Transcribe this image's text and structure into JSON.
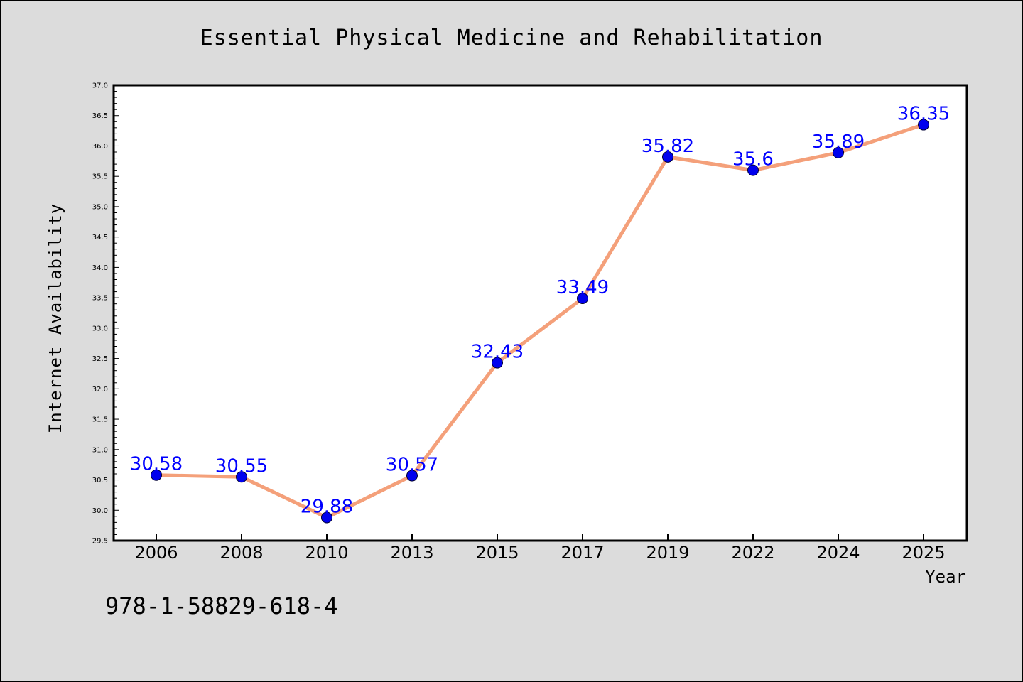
{
  "chart_data": {
    "type": "line",
    "title": "Essential Physical Medicine and Rehabilitation",
    "xlabel": "Year",
    "ylabel": "Internet Availability",
    "categories": [
      "2006",
      "2008",
      "2010",
      "2013",
      "2015",
      "2017",
      "2019",
      "2022",
      "2024",
      "2025"
    ],
    "series": [
      {
        "values": [
          30.58,
          30.55,
          29.88,
          30.57,
          32.43,
          33.49,
          35.82,
          35.6,
          35.89,
          36.35
        ]
      }
    ],
    "data_labels": [
      "30.58",
      "30.55",
      "29.88",
      "30.57",
      "32.43",
      "33.49",
      "35.82",
      "35.6",
      "35.89",
      "36.35"
    ],
    "ylim": [
      29.5,
      37.0
    ],
    "yticks": [
      "29.5",
      "30.0",
      "30.5",
      "31.0",
      "31.5",
      "32.0",
      "32.5",
      "33.0",
      "33.5",
      "34.0",
      "34.5",
      "35.0",
      "35.5",
      "36.0",
      "36.5",
      "37.0"
    ],
    "grid": false,
    "legend": "none",
    "colors": {
      "line": "#f4a07a",
      "marker": "#0000ee",
      "data_label": "#0000ff",
      "background": "#dcdcdc",
      "plot_area": "#ffffff"
    }
  },
  "footer": {
    "isbn": "978-1-58829-618-4"
  }
}
